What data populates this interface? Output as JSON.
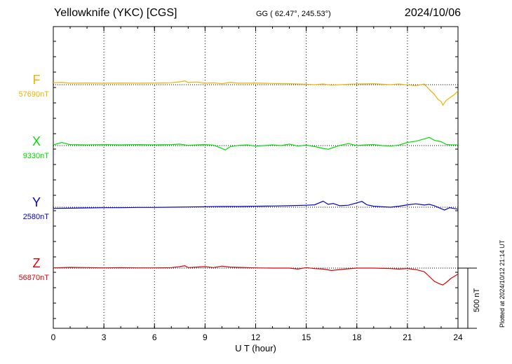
{
  "header": {
    "station": "Yellowknife (YKC)  [CGS]",
    "coords": "GG ( 62.47°, 245.53°)",
    "date": "2024/10/06"
  },
  "footer": {
    "plotted": "Plotted at 2024/10/12 21:14 UT",
    "scale_label": "500 nT"
  },
  "colors": {
    "F": "#f5b000",
    "X": "#00e000",
    "Y": "#0000d8",
    "Z": "#e00000"
  },
  "chart_data": {
    "type": "line",
    "xlabel": "U T (hour)",
    "xlim": [
      0,
      24
    ],
    "xticks": [
      "0",
      "3",
      "6",
      "9",
      "12",
      "15",
      "18",
      "21",
      "24"
    ],
    "scale_bar_nT": 500,
    "series": [
      {
        "name": "F",
        "baseline_label": "57690nT",
        "baseline": 57690,
        "x": [
          0,
          0.5,
          1,
          2,
          3,
          4,
          5,
          6,
          7,
          7.5,
          7.8,
          8,
          8.5,
          9,
          9.5,
          10,
          10.5,
          11,
          12,
          13,
          14,
          15,
          15.5,
          16,
          16.5,
          17,
          17.5,
          18,
          19,
          20,
          20.5,
          21,
          21.5,
          22,
          22.3,
          22.6,
          22.8,
          23,
          23.1,
          23.3,
          23.5,
          23.8,
          24
        ],
        "values": [
          57698,
          57700,
          57696,
          57697,
          57696,
          57697,
          57696,
          57697,
          57698,
          57702,
          57706,
          57699,
          57701,
          57696,
          57698,
          57694,
          57700,
          57696,
          57697,
          57695,
          57694,
          57692,
          57690,
          57693,
          57688,
          57690,
          57692,
          57693,
          57694,
          57690,
          57693,
          57689,
          57686,
          57693,
          57670,
          57650,
          57630,
          57620,
          57605,
          57625,
          57635,
          57650,
          57665
        ]
      },
      {
        "name": "X",
        "baseline_label": "9330nT",
        "baseline": 9330,
        "x": [
          0,
          0.5,
          1,
          2,
          3,
          4,
          5,
          6,
          7,
          7.5,
          8,
          8.5,
          9,
          9.5,
          10,
          10.2,
          10.5,
          11,
          11.5,
          12,
          12.5,
          13,
          13.5,
          14,
          14.5,
          15,
          15.5,
          16,
          16.3,
          16.6,
          17,
          17.5,
          18,
          18.5,
          19,
          19.5,
          20,
          20.5,
          21,
          21.5,
          22,
          22.3,
          22.6,
          23,
          23.3,
          23.6,
          24
        ],
        "values": [
          9333,
          9343,
          9334,
          9333,
          9334,
          9333,
          9334,
          9333,
          9334,
          9336,
          9331,
          9333,
          9334,
          9332,
          9318,
          9312,
          9326,
          9331,
          9333,
          9328,
          9330,
          9333,
          9330,
          9336,
          9328,
          9332,
          9326,
          9318,
          9315,
          9322,
          9331,
          9338,
          9330,
          9333,
          9334,
          9330,
          9328,
          9332,
          9343,
          9348,
          9358,
          9364,
          9352,
          9346,
          9335,
          9333,
          9333
        ]
      },
      {
        "name": "Y",
        "baseline_label": "2580nT",
        "baseline": 2580,
        "x": [
          0,
          1,
          2,
          3,
          4,
          5,
          6,
          7,
          8,
          9,
          10,
          11,
          12,
          13,
          14,
          15,
          15.5,
          16,
          16.3,
          16.6,
          17,
          17.5,
          18,
          18.3,
          18.6,
          19,
          19.5,
          20,
          20.5,
          21,
          21.5,
          22,
          22.3,
          22.6,
          23,
          23.2,
          23.5,
          24
        ],
        "values": [
          2575,
          2576,
          2577,
          2578,
          2578,
          2579,
          2579,
          2580,
          2581,
          2582,
          2583,
          2583,
          2584,
          2585,
          2586,
          2588,
          2590,
          2605,
          2592,
          2595,
          2586,
          2588,
          2598,
          2604,
          2590,
          2584,
          2582,
          2580,
          2584,
          2590,
          2594,
          2589,
          2592,
          2586,
          2574,
          2568,
          2578,
          2572
        ]
      },
      {
        "name": "Z",
        "baseline_label": "56870nT",
        "baseline": 56870,
        "x": [
          0,
          1,
          2,
          3,
          4,
          5,
          6,
          7,
          7.5,
          7.8,
          8,
          8.5,
          9,
          9.5,
          10,
          10.5,
          11,
          12,
          13,
          14,
          14.5,
          15,
          15.5,
          16,
          16.5,
          17,
          17.5,
          18,
          19,
          20,
          20.5,
          21,
          21.5,
          22,
          22.3,
          22.6,
          22.9,
          23.1,
          23.3,
          23.6,
          24
        ],
        "values": [
          56871,
          56873,
          56872,
          56871,
          56872,
          56871,
          56871,
          56872,
          56876,
          56880,
          56872,
          56874,
          56876,
          56872,
          56878,
          56874,
          56873,
          56871,
          56870,
          56870,
          56866,
          56872,
          56868,
          56866,
          56860,
          56864,
          56867,
          56870,
          56870,
          56868,
          56866,
          56868,
          56864,
          56855,
          56835,
          56815,
          56805,
          56800,
          56810,
          56828,
          56845
        ]
      }
    ]
  }
}
